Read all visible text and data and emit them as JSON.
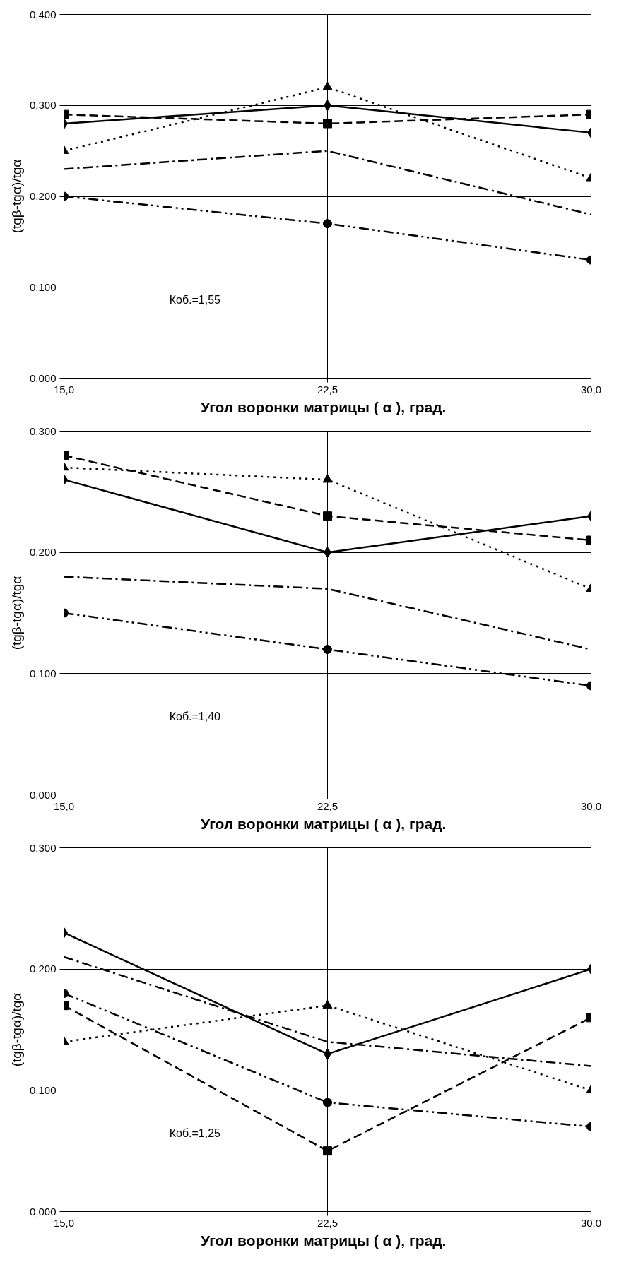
{
  "chart_data": [
    {
      "type": "line",
      "xlabel": "Угол воронки матрицы ( α ),   град.",
      "ylabel": "(tgβ-tgα)/tgα",
      "annotations": [
        "Коб.=1,55"
      ],
      "x": [
        15,
        22.5,
        30
      ],
      "xlim": [
        15,
        30
      ],
      "xticks": [
        {
          "value": 15,
          "label": "15,0"
        },
        {
          "value": 22.5,
          "label": "22,5"
        },
        {
          "value": 30,
          "label": "30,0"
        }
      ],
      "ylim": [
        0,
        0.4
      ],
      "yticks": [
        {
          "value": 0,
          "label": "0,000"
        },
        {
          "value": 0.1,
          "label": "0,100"
        },
        {
          "value": 0.2,
          "label": "0,200"
        },
        {
          "value": 0.3,
          "label": "0,300"
        },
        {
          "value": 0.4,
          "label": "0,400"
        }
      ],
      "grid": true,
      "series": [
        {
          "color": "#000000",
          "marker": "diamond",
          "line_style": "solid",
          "values": [
            0.28,
            0.3,
            0.27
          ]
        },
        {
          "color": "#000000",
          "marker": "square",
          "line_style": "dashed",
          "values": [
            0.29,
            0.28,
            0.29
          ]
        },
        {
          "color": "#000000",
          "marker": "triangle",
          "line_style": "dotted",
          "values": [
            0.25,
            0.32,
            0.22
          ]
        },
        {
          "color": "#000000",
          "marker": "none",
          "line_style": "dashdot",
          "values": [
            0.23,
            0.25,
            0.18
          ]
        },
        {
          "color": "#000000",
          "marker": "circle",
          "line_style": "dashdotdot",
          "values": [
            0.2,
            0.17,
            0.13
          ]
        }
      ]
    },
    {
      "type": "line",
      "xlabel": "Угол воронки матрицы ( α ),   град.",
      "ylabel": "(tgβ-tgα)/tgα",
      "annotations": [
        "Коб.=1,40"
      ],
      "x": [
        15,
        22.5,
        30
      ],
      "xlim": [
        15,
        30
      ],
      "xticks": [
        {
          "value": 15,
          "label": "15,0"
        },
        {
          "value": 22.5,
          "label": "22,5"
        },
        {
          "value": 30,
          "label": "30,0"
        }
      ],
      "ylim": [
        0,
        0.3
      ],
      "yticks": [
        {
          "value": 0,
          "label": "0,000"
        },
        {
          "value": 0.1,
          "label": "0,100"
        },
        {
          "value": 0.2,
          "label": "0,200"
        },
        {
          "value": 0.3,
          "label": "0,300"
        }
      ],
      "grid": true,
      "series": [
        {
          "color": "#000000",
          "marker": "diamond",
          "line_style": "solid",
          "values": [
            0.26,
            0.2,
            0.23
          ]
        },
        {
          "color": "#000000",
          "marker": "square",
          "line_style": "dashed",
          "values": [
            0.28,
            0.23,
            0.21
          ]
        },
        {
          "color": "#000000",
          "marker": "triangle",
          "line_style": "dotted",
          "values": [
            0.27,
            0.26,
            0.17
          ]
        },
        {
          "color": "#000000",
          "marker": "none",
          "line_style": "dashdot",
          "values": [
            0.18,
            0.17,
            0.12
          ]
        },
        {
          "color": "#000000",
          "marker": "circle",
          "line_style": "dashdotdot",
          "values": [
            0.15,
            0.12,
            0.09
          ]
        }
      ]
    },
    {
      "type": "line",
      "xlabel": "Угол воронки матрицы ( α ),   град.",
      "ylabel": "(tgβ-tgα)/tgα",
      "annotations": [
        "Коб.=1,25"
      ],
      "x": [
        15,
        22.5,
        30
      ],
      "xlim": [
        15,
        30
      ],
      "xticks": [
        {
          "value": 15,
          "label": "15,0"
        },
        {
          "value": 22.5,
          "label": "22,5"
        },
        {
          "value": 30,
          "label": "30,0"
        }
      ],
      "ylim": [
        0,
        0.3
      ],
      "yticks": [
        {
          "value": 0,
          "label": "0,000"
        },
        {
          "value": 0.1,
          "label": "0,100"
        },
        {
          "value": 0.2,
          "label": "0,200"
        },
        {
          "value": 0.3,
          "label": "0,300"
        }
      ],
      "grid": true,
      "series": [
        {
          "color": "#000000",
          "marker": "diamond",
          "line_style": "solid",
          "values": [
            0.23,
            0.13,
            0.2
          ]
        },
        {
          "color": "#000000",
          "marker": "square",
          "line_style": "dashed",
          "values": [
            0.17,
            0.05,
            0.16
          ]
        },
        {
          "color": "#000000",
          "marker": "triangle",
          "line_style": "dotted",
          "values": [
            0.14,
            0.17,
            0.1
          ]
        },
        {
          "color": "#000000",
          "marker": "none",
          "line_style": "dashdot",
          "values": [
            0.21,
            0.14,
            0.12
          ]
        },
        {
          "color": "#000000",
          "marker": "circle",
          "line_style": "dashdotdot",
          "values": [
            0.18,
            0.09,
            0.07
          ]
        }
      ]
    }
  ]
}
